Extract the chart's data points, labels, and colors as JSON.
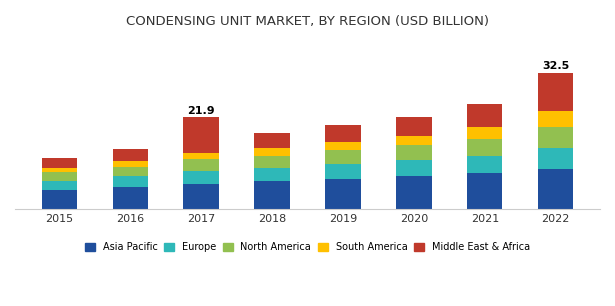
{
  "years": [
    "2015",
    "2016",
    "2017",
    "2018",
    "2019",
    "2020",
    "2021",
    "2022"
  ],
  "regions": [
    "Asia Pacific",
    "Europe",
    "North America",
    "South America",
    "Middle East & Africa"
  ],
  "colors": [
    "#1f4e9c",
    "#2eb8b8",
    "#92c050",
    "#ffc000",
    "#c0392b"
  ],
  "values": {
    "Asia Pacific": [
      4.5,
      5.2,
      6.0,
      6.5,
      7.2,
      7.8,
      8.5,
      9.5
    ],
    "Europe": [
      2.2,
      2.5,
      3.0,
      3.2,
      3.5,
      3.8,
      4.2,
      5.0
    ],
    "North America": [
      2.0,
      2.3,
      2.8,
      3.0,
      3.3,
      3.6,
      4.0,
      5.0
    ],
    "South America": [
      1.0,
      1.3,
      1.6,
      1.8,
      2.0,
      2.3,
      2.8,
      4.0
    ],
    "Middle East & Africa": [
      2.5,
      3.0,
      8.5,
      3.5,
      4.0,
      4.5,
      5.5,
      9.0
    ]
  },
  "totals_label": {
    "2017": "21.9",
    "2022": "32.5"
  },
  "title": "CONDENSING UNIT MARKET, BY REGION (USD BILLION)",
  "title_fontsize": 9.5,
  "background_color": "#ffffff",
  "ylim": [
    0,
    40
  ],
  "bar_width": 0.5
}
